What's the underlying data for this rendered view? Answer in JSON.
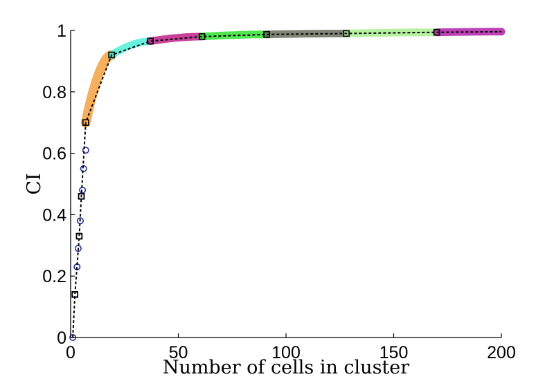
{
  "chart_data": {
    "type": "scatter",
    "title": "",
    "xlabel": "Number of cells in cluster",
    "ylabel": "CI",
    "xlim": [
      0,
      200
    ],
    "ylim": [
      0,
      1
    ],
    "xticks": [
      0,
      50,
      100,
      150,
      200
    ],
    "yticks": [
      0,
      0.2,
      0.4,
      0.6,
      0.8,
      1
    ],
    "xtick_labels": [
      "0",
      "50",
      "100",
      "150",
      "200"
    ],
    "ytick_labels": [
      "0",
      "0.2",
      "0.4",
      "0.6",
      "0.8",
      "1"
    ],
    "grid": false,
    "legend": "none",
    "segments": [
      {
        "color": "#1f2f9a",
        "style": "circles",
        "x": [
          1,
          2,
          3,
          3.5,
          4,
          4.5,
          5,
          5.5,
          6,
          7
        ],
        "y": [
          0,
          0.14,
          0.23,
          0.29,
          0.33,
          0.38,
          0.46,
          0.48,
          0.55,
          0.61
        ]
      },
      {
        "color": "#f5a142",
        "style": "band",
        "x_range": [
          7,
          19
        ],
        "y_range": [
          0.7,
          0.92
        ]
      },
      {
        "color": "#4ef0d8",
        "style": "band",
        "x_range": [
          19,
          37
        ],
        "y_range": [
          0.92,
          0.965
        ]
      },
      {
        "color": "#c0208a",
        "style": "band",
        "x_range": [
          37,
          61
        ],
        "y_range": [
          0.965,
          0.98
        ]
      },
      {
        "color": "#33e033",
        "style": "band",
        "x_range": [
          61,
          91
        ],
        "y_range": [
          0.98,
          0.987
        ]
      },
      {
        "color": "#6b7060",
        "style": "band",
        "x_range": [
          91,
          128
        ],
        "y_range": [
          0.987,
          0.99
        ]
      },
      {
        "color": "#a8ee90",
        "style": "band",
        "x_range": [
          128,
          170
        ],
        "y_range": [
          0.99,
          0.994
        ]
      },
      {
        "color": "#b020a8",
        "style": "band",
        "x_range": [
          170,
          200
        ],
        "y_range": [
          0.994,
          0.996
        ]
      }
    ],
    "dashed_line": {
      "color": "#000000",
      "x": [
        1,
        2,
        4,
        5,
        7,
        19,
        37,
        61,
        91,
        128,
        170,
        200
      ],
      "y": [
        0,
        0.14,
        0.33,
        0.46,
        0.7,
        0.92,
        0.965,
        0.98,
        0.987,
        0.99,
        0.994,
        0.996
      ],
      "square_markers_at": [
        2,
        4,
        5,
        7,
        19,
        37,
        61,
        91,
        128,
        170
      ]
    }
  }
}
